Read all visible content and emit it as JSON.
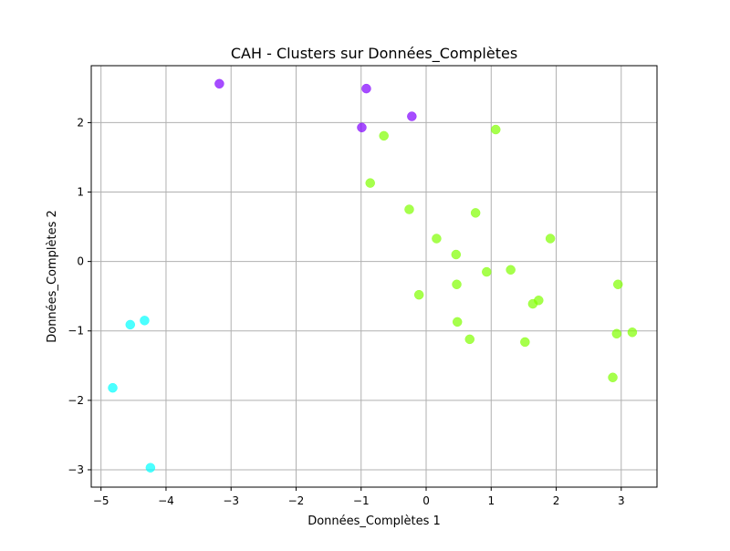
{
  "chart_data": {
    "type": "scatter",
    "title": "CAH - Clusters sur Données_Complètes",
    "xlabel": "Données_Complètes 1",
    "ylabel": "Données_Complètes 2",
    "xlim": [
      -5.15,
      3.55
    ],
    "ylim": [
      -3.25,
      2.82
    ],
    "xticks": [
      -5,
      -4,
      -3,
      -2,
      -1,
      0,
      1,
      2,
      3
    ],
    "yticks": [
      -3,
      -2,
      -1,
      0,
      1,
      2
    ],
    "grid": true,
    "legend": "none",
    "series": [
      {
        "color": "#8000ff",
        "points": [
          {
            "x": -3.18,
            "y": 2.56
          },
          {
            "x": -0.92,
            "y": 2.49
          },
          {
            "x": -0.22,
            "y": 2.09
          },
          {
            "x": -0.99,
            "y": 1.93
          }
        ]
      },
      {
        "color": "#80ff00",
        "points": [
          {
            "x": -0.65,
            "y": 1.81
          },
          {
            "x": 1.07,
            "y": 1.9
          },
          {
            "x": -0.86,
            "y": 1.13
          },
          {
            "x": -0.26,
            "y": 0.75
          },
          {
            "x": 0.76,
            "y": 0.7
          },
          {
            "x": 0.16,
            "y": 0.33
          },
          {
            "x": 1.91,
            "y": 0.33
          },
          {
            "x": 0.46,
            "y": 0.1
          },
          {
            "x": 0.93,
            "y": -0.15
          },
          {
            "x": 1.3,
            "y": -0.12
          },
          {
            "x": -0.11,
            "y": -0.48
          },
          {
            "x": 0.47,
            "y": -0.33
          },
          {
            "x": 2.95,
            "y": -0.33
          },
          {
            "x": 1.64,
            "y": -0.61
          },
          {
            "x": 1.73,
            "y": -0.56
          },
          {
            "x": 0.48,
            "y": -0.87
          },
          {
            "x": 0.67,
            "y": -1.12
          },
          {
            "x": 1.52,
            "y": -1.16
          },
          {
            "x": 2.93,
            "y": -1.04
          },
          {
            "x": 3.17,
            "y": -1.02
          },
          {
            "x": 2.87,
            "y": -1.67
          }
        ]
      },
      {
        "color": "#00ffff",
        "points": [
          {
            "x": -4.33,
            "y": -0.85
          },
          {
            "x": -4.55,
            "y": -0.91
          },
          {
            "x": -4.82,
            "y": -1.82
          },
          {
            "x": -4.24,
            "y": -2.97
          }
        ]
      }
    ]
  }
}
